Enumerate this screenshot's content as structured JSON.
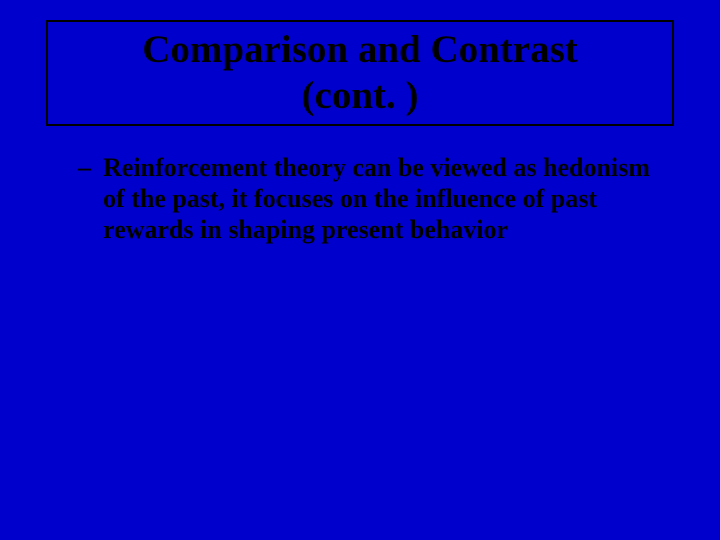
{
  "background_color": "#0000cc",
  "text_color": "#000000",
  "title_border_color": "#000000",
  "title": {
    "line1": "Comparison and Contrast",
    "line2": "(cont. )",
    "font_size": 39,
    "font_weight": "bold",
    "font_family": "Times New Roman"
  },
  "body": {
    "font_size": 26,
    "font_weight": "bold",
    "font_family": "Times New Roman",
    "bullets": [
      {
        "marker": "–",
        "text": "Reinforcement theory can be viewed as hedonism of the past, it focuses on the influence of past rewards in shaping present behavior"
      }
    ]
  }
}
